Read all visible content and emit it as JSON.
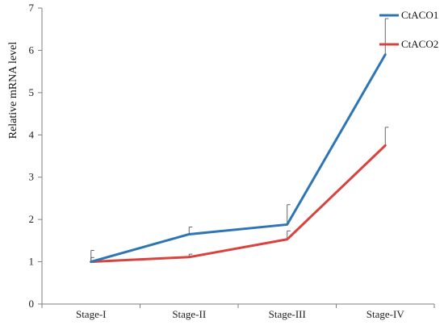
{
  "chart_data": {
    "type": "line",
    "title": "",
    "xlabel": "",
    "ylabel": "Relative mRNA level",
    "categories": [
      "Stage-I",
      "Stage-II",
      "Stage-III",
      "Stage-IV"
    ],
    "ylim": [
      0,
      7
    ],
    "yticks": [
      0,
      1,
      2,
      3,
      4,
      5,
      6,
      7
    ],
    "grid": false,
    "legend_position": "top-right",
    "series": [
      {
        "name": "CtACO1",
        "color": "#2E75B6",
        "values": [
          1.0,
          1.65,
          1.88,
          5.9
        ],
        "error_upper": [
          0.27,
          0.17,
          0.47,
          0.85
        ]
      },
      {
        "name": "CtACO2",
        "color": "#D9433F",
        "values": [
          1.0,
          1.11,
          1.53,
          3.75
        ],
        "error_upper": [
          0.1,
          0.07,
          0.2,
          0.43
        ]
      }
    ]
  }
}
